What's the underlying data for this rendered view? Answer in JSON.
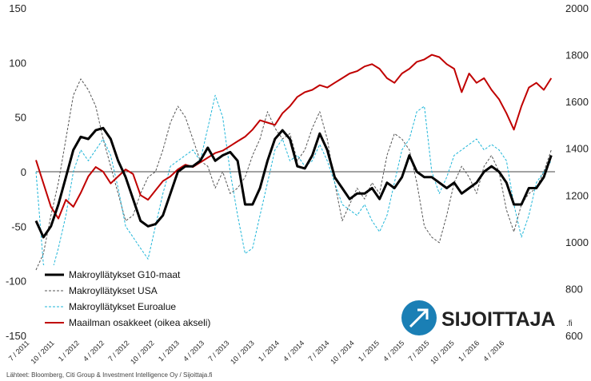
{
  "chart_data": {
    "type": "line",
    "x_labels": [
      "7 / 2011",
      "10 / 2011",
      "1 / 2012",
      "4 / 2012",
      "7 / 2012",
      "10 / 2012",
      "1 / 2013",
      "4 / 2013",
      "7 / 2013",
      "10 / 2013",
      "1 / 2014",
      "4 / 2014",
      "7 / 2014",
      "10 / 2014",
      "1 / 2015",
      "4 / 2015",
      "7 / 2015",
      "10 / 2015",
      "1 / 2016",
      "4 / 2016"
    ],
    "x_range": [
      "7 / 2011",
      "9 / 2016"
    ],
    "y_left": {
      "ylim": [
        -150,
        150
      ],
      "ticks": [
        -150,
        -100,
        -50,
        0,
        50,
        100,
        150
      ]
    },
    "y_right": {
      "ylim": [
        600,
        2000
      ],
      "ticks": [
        600,
        800,
        1000,
        1200,
        1400,
        1600,
        1800,
        2000
      ]
    },
    "grid": false,
    "legend_placement": "bottom-left",
    "series": [
      {
        "name": "Makroyllätykset G10-maat",
        "axis": "left",
        "color": "#000000",
        "style": "solid-thick",
        "points": [
          [
            0,
            -45
          ],
          [
            2,
            -60
          ],
          [
            4,
            -50
          ],
          [
            6,
            -30
          ],
          [
            8,
            -5
          ],
          [
            10,
            20
          ],
          [
            12,
            32
          ],
          [
            14,
            30
          ],
          [
            16,
            38
          ],
          [
            18,
            40
          ],
          [
            20,
            30
          ],
          [
            22,
            10
          ],
          [
            24,
            -5
          ],
          [
            26,
            -25
          ],
          [
            28,
            -45
          ],
          [
            30,
            -50
          ],
          [
            32,
            -48
          ],
          [
            34,
            -40
          ],
          [
            36,
            -20
          ],
          [
            38,
            0
          ],
          [
            40,
            5
          ],
          [
            42,
            5
          ],
          [
            44,
            10
          ],
          [
            46,
            22
          ],
          [
            48,
            10
          ],
          [
            50,
            15
          ],
          [
            52,
            18
          ],
          [
            54,
            10
          ],
          [
            56,
            -30
          ],
          [
            58,
            -30
          ],
          [
            60,
            -15
          ],
          [
            62,
            10
          ],
          [
            64,
            30
          ],
          [
            66,
            38
          ],
          [
            68,
            30
          ],
          [
            70,
            5
          ],
          [
            72,
            3
          ],
          [
            74,
            15
          ],
          [
            76,
            35
          ],
          [
            78,
            20
          ],
          [
            80,
            -5
          ],
          [
            82,
            -15
          ],
          [
            84,
            -25
          ],
          [
            86,
            -20
          ],
          [
            88,
            -20
          ],
          [
            90,
            -15
          ],
          [
            92,
            -25
          ],
          [
            94,
            -10
          ],
          [
            96,
            -15
          ],
          [
            98,
            -5
          ],
          [
            100,
            15
          ],
          [
            102,
            0
          ],
          [
            104,
            -5
          ],
          [
            106,
            -5
          ],
          [
            108,
            -10
          ],
          [
            110,
            -15
          ],
          [
            112,
            -10
          ],
          [
            114,
            -20
          ],
          [
            116,
            -15
          ],
          [
            118,
            -10
          ],
          [
            120,
            0
          ],
          [
            122,
            5
          ],
          [
            124,
            0
          ],
          [
            126,
            -10
          ],
          [
            128,
            -30
          ],
          [
            130,
            -30
          ],
          [
            132,
            -15
          ],
          [
            134,
            -15
          ],
          [
            136,
            -5
          ],
          [
            138,
            15
          ]
        ]
      },
      {
        "name": "Makroyllätykset USA",
        "axis": "left",
        "color": "#555555",
        "style": "dashed",
        "points": [
          [
            0,
            -90
          ],
          [
            2,
            -75
          ],
          [
            4,
            -40
          ],
          [
            6,
            -10
          ],
          [
            8,
            30
          ],
          [
            10,
            70
          ],
          [
            12,
            85
          ],
          [
            14,
            75
          ],
          [
            16,
            60
          ],
          [
            18,
            30
          ],
          [
            20,
            5
          ],
          [
            22,
            -20
          ],
          [
            24,
            -45
          ],
          [
            26,
            -40
          ],
          [
            28,
            -20
          ],
          [
            30,
            -5
          ],
          [
            32,
            0
          ],
          [
            34,
            20
          ],
          [
            36,
            45
          ],
          [
            38,
            60
          ],
          [
            40,
            50
          ],
          [
            42,
            30
          ],
          [
            44,
            10
          ],
          [
            46,
            5
          ],
          [
            48,
            -15
          ],
          [
            50,
            0
          ],
          [
            52,
            -20
          ],
          [
            54,
            -15
          ],
          [
            56,
            -5
          ],
          [
            58,
            15
          ],
          [
            60,
            30
          ],
          [
            62,
            55
          ],
          [
            64,
            40
          ],
          [
            66,
            30
          ],
          [
            68,
            35
          ],
          [
            70,
            10
          ],
          [
            72,
            20
          ],
          [
            74,
            40
          ],
          [
            76,
            55
          ],
          [
            78,
            30
          ],
          [
            80,
            -10
          ],
          [
            82,
            -45
          ],
          [
            84,
            -30
          ],
          [
            86,
            -15
          ],
          [
            88,
            -25
          ],
          [
            90,
            -10
          ],
          [
            92,
            -20
          ],
          [
            94,
            15
          ],
          [
            96,
            35
          ],
          [
            98,
            30
          ],
          [
            100,
            20
          ],
          [
            102,
            -10
          ],
          [
            104,
            -50
          ],
          [
            106,
            -60
          ],
          [
            108,
            -65
          ],
          [
            110,
            -40
          ],
          [
            112,
            -10
          ],
          [
            114,
            5
          ],
          [
            116,
            -5
          ],
          [
            118,
            -20
          ],
          [
            120,
            5
          ],
          [
            122,
            15
          ],
          [
            124,
            0
          ],
          [
            126,
            -35
          ],
          [
            128,
            -55
          ],
          [
            130,
            -30
          ],
          [
            132,
            -20
          ],
          [
            134,
            -15
          ],
          [
            136,
            0
          ],
          [
            138,
            20
          ]
        ]
      },
      {
        "name": "Makroyllätykset Euroalue",
        "axis": "left",
        "color": "#1fb6d9",
        "style": "dashed",
        "points": [
          [
            0,
            0
          ],
          [
            2,
            -85
          ],
          [
            4,
            -95
          ],
          [
            6,
            -70
          ],
          [
            8,
            -40
          ],
          [
            10,
            0
          ],
          [
            12,
            20
          ],
          [
            14,
            10
          ],
          [
            16,
            20
          ],
          [
            18,
            30
          ],
          [
            20,
            15
          ],
          [
            22,
            -15
          ],
          [
            24,
            -50
          ],
          [
            26,
            -60
          ],
          [
            28,
            -70
          ],
          [
            30,
            -80
          ],
          [
            32,
            -50
          ],
          [
            34,
            -20
          ],
          [
            36,
            5
          ],
          [
            38,
            10
          ],
          [
            40,
            15
          ],
          [
            42,
            20
          ],
          [
            44,
            10
          ],
          [
            46,
            40
          ],
          [
            48,
            70
          ],
          [
            50,
            50
          ],
          [
            52,
            0
          ],
          [
            54,
            -40
          ],
          [
            56,
            -75
          ],
          [
            58,
            -70
          ],
          [
            60,
            -40
          ],
          [
            62,
            -10
          ],
          [
            64,
            20
          ],
          [
            66,
            30
          ],
          [
            68,
            10
          ],
          [
            70,
            15
          ],
          [
            72,
            5
          ],
          [
            74,
            10
          ],
          [
            76,
            25
          ],
          [
            78,
            10
          ],
          [
            80,
            -10
          ],
          [
            82,
            -30
          ],
          [
            84,
            -35
          ],
          [
            86,
            -40
          ],
          [
            88,
            -30
          ],
          [
            90,
            -45
          ],
          [
            92,
            -55
          ],
          [
            94,
            -40
          ],
          [
            96,
            -10
          ],
          [
            98,
            20
          ],
          [
            100,
            30
          ],
          [
            102,
            55
          ],
          [
            104,
            60
          ],
          [
            106,
            0
          ],
          [
            108,
            -20
          ],
          [
            110,
            -5
          ],
          [
            112,
            15
          ],
          [
            114,
            20
          ],
          [
            116,
            25
          ],
          [
            118,
            30
          ],
          [
            120,
            20
          ],
          [
            122,
            25
          ],
          [
            124,
            20
          ],
          [
            126,
            10
          ],
          [
            128,
            -30
          ],
          [
            130,
            -60
          ],
          [
            132,
            -40
          ],
          [
            134,
            -10
          ],
          [
            136,
            0
          ],
          [
            138,
            10
          ]
        ]
      },
      {
        "name": "Maailman osakkeet (oikea akseli)",
        "axis": "right",
        "color": "#c00000",
        "style": "solid",
        "points": [
          [
            0,
            1350
          ],
          [
            2,
            1250
          ],
          [
            4,
            1150
          ],
          [
            6,
            1100
          ],
          [
            8,
            1180
          ],
          [
            10,
            1150
          ],
          [
            12,
            1210
          ],
          [
            14,
            1280
          ],
          [
            16,
            1320
          ],
          [
            18,
            1300
          ],
          [
            20,
            1250
          ],
          [
            22,
            1280
          ],
          [
            24,
            1310
          ],
          [
            26,
            1290
          ],
          [
            28,
            1200
          ],
          [
            30,
            1180
          ],
          [
            32,
            1220
          ],
          [
            34,
            1260
          ],
          [
            36,
            1280
          ],
          [
            38,
            1310
          ],
          [
            40,
            1330
          ],
          [
            42,
            1320
          ],
          [
            44,
            1340
          ],
          [
            46,
            1360
          ],
          [
            48,
            1380
          ],
          [
            50,
            1390
          ],
          [
            52,
            1410
          ],
          [
            54,
            1430
          ],
          [
            56,
            1450
          ],
          [
            58,
            1480
          ],
          [
            60,
            1520
          ],
          [
            62,
            1510
          ],
          [
            64,
            1500
          ],
          [
            66,
            1550
          ],
          [
            68,
            1580
          ],
          [
            70,
            1620
          ],
          [
            72,
            1640
          ],
          [
            74,
            1650
          ],
          [
            76,
            1670
          ],
          [
            78,
            1660
          ],
          [
            80,
            1680
          ],
          [
            82,
            1700
          ],
          [
            84,
            1720
          ],
          [
            86,
            1730
          ],
          [
            88,
            1750
          ],
          [
            90,
            1760
          ],
          [
            92,
            1740
          ],
          [
            94,
            1700
          ],
          [
            96,
            1680
          ],
          [
            98,
            1720
          ],
          [
            100,
            1740
          ],
          [
            102,
            1770
          ],
          [
            104,
            1780
          ],
          [
            106,
            1800
          ],
          [
            108,
            1790
          ],
          [
            110,
            1760
          ],
          [
            112,
            1740
          ],
          [
            114,
            1640
          ],
          [
            116,
            1720
          ],
          [
            118,
            1680
          ],
          [
            120,
            1700
          ],
          [
            122,
            1650
          ],
          [
            124,
            1610
          ],
          [
            126,
            1550
          ],
          [
            128,
            1480
          ],
          [
            130,
            1580
          ],
          [
            132,
            1660
          ],
          [
            134,
            1680
          ],
          [
            136,
            1650
          ],
          [
            138,
            1700
          ]
        ]
      }
    ]
  },
  "legend": [
    {
      "label": "Makroyllätykset G10-maat",
      "color": "#000000",
      "style": "solid-thick"
    },
    {
      "label": "Makroyllätykset USA",
      "color": "#555555",
      "style": "dashed"
    },
    {
      "label": "Makroyllätykset Euroalue",
      "color": "#1fb6d9",
      "style": "dashed"
    },
    {
      "label": "Maailman osakkeet (oikea akseli)",
      "color": "#c00000",
      "style": "solid"
    }
  ],
  "source": "Lähteet: Bloomberg, Citi Group & Investment Intelligence Oy / Sijoittaja.fi",
  "brand": {
    "name": "SIJOITTAJA",
    "suffix": ".fi",
    "color": "#1a7fb5"
  }
}
